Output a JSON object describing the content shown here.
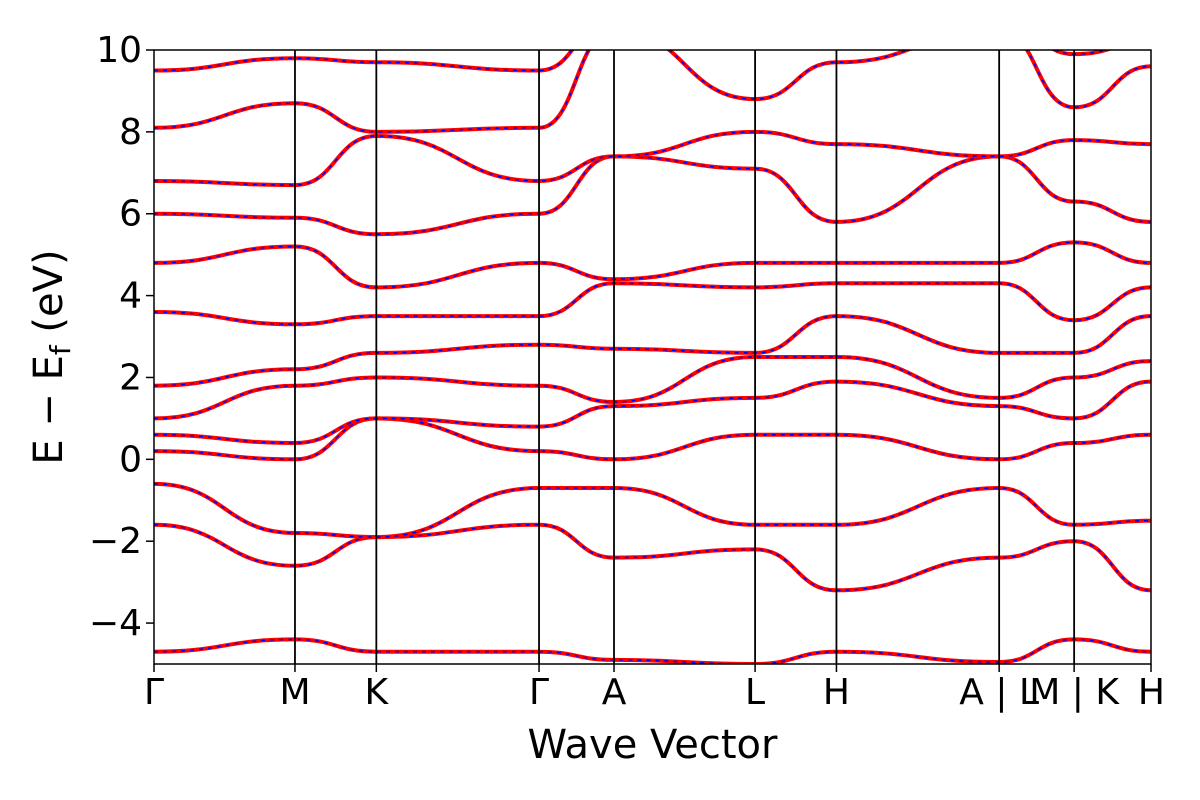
{
  "chart_data": {
    "type": "line",
    "title": "",
    "xlabel": "Wave Vector",
    "ylabel": "E − E",
    "ylabel_subscript": "f",
    "ylabel_unit": " (eV)",
    "ylim": [
      -5,
      10
    ],
    "yticks": [
      -4,
      -2,
      0,
      2,
      4,
      6,
      8,
      10
    ],
    "ytick_labels": [
      "−4",
      "−2",
      "0",
      "2",
      "4",
      "6",
      "8",
      "10"
    ],
    "xlim": [
      0,
      1
    ],
    "kpath_positions": [
      0,
      0.1414,
      0.223,
      0.3862,
      0.4614,
      0.6029,
      0.6845,
      0.8477,
      0.9229,
      1.0
    ],
    "xtick_labels": [
      "Γ",
      "M",
      "K",
      "Γ",
      "A",
      "L",
      "H",
      "A | L",
      "M | K",
      "H"
    ],
    "grid": false,
    "colors": {
      "band_line": "#ff0000",
      "band_dash": "#0000ff",
      "kpath_line": "#000000"
    },
    "series": [
      {
        "x": [
          0,
          0.1414,
          0.223,
          0.3862,
          0.4614,
          0.6029,
          0.6845,
          0.8477,
          0.9229,
          1.0
        ],
        "values": [
          -4.7,
          -4.4,
          -4.7,
          -4.7,
          -4.9,
          -5.0,
          -4.7,
          -4.95,
          -4.4,
          -4.7
        ]
      },
      {
        "x": [
          0,
          0.1414,
          0.223,
          0.3862,
          0.4614,
          0.6029,
          0.6845,
          0.8477,
          0.9229,
          1.0
        ],
        "values": [
          -1.6,
          -2.6,
          -1.9,
          -1.6,
          -2.4,
          -2.2,
          -3.2,
          -2.4,
          -2.0,
          -3.2
        ]
      },
      {
        "x": [
          0,
          0.1414,
          0.223,
          0.3862,
          0.4614,
          0.6029,
          0.6845,
          0.8477,
          0.9229,
          1.0
        ],
        "values": [
          -0.6,
          -1.8,
          -1.9,
          -0.7,
          -0.7,
          -1.6,
          -1.6,
          -0.7,
          -1.6,
          -1.5
        ]
      },
      {
        "x": [
          0,
          0.1414,
          0.223,
          0.3862,
          0.4614,
          0.6029,
          0.6845,
          0.8477,
          0.9229,
          1.0
        ],
        "values": [
          0.2,
          0.0,
          1.0,
          0.2,
          0.0,
          0.6,
          0.6,
          0.0,
          0.4,
          0.6
        ]
      },
      {
        "x": [
          0,
          0.1414,
          0.223,
          0.3862,
          0.4614,
          0.6029,
          0.6845,
          0.8477,
          0.9229,
          1.0
        ],
        "values": [
          0.6,
          0.4,
          1.0,
          0.8,
          1.3,
          1.5,
          1.9,
          1.3,
          1.0,
          1.9
        ]
      },
      {
        "x": [
          0,
          0.1414,
          0.223,
          0.3862,
          0.4614,
          0.6029,
          0.6845,
          0.8477,
          0.9229,
          1.0
        ],
        "values": [
          1.0,
          1.8,
          2.0,
          1.8,
          1.4,
          2.5,
          2.5,
          1.5,
          2.0,
          2.4
        ]
      },
      {
        "x": [
          0,
          0.1414,
          0.223,
          0.3862,
          0.4614,
          0.6029,
          0.6845,
          0.8477,
          0.9229,
          1.0
        ],
        "values": [
          1.8,
          2.2,
          2.6,
          2.8,
          2.7,
          2.6,
          3.5,
          2.6,
          2.6,
          3.5
        ]
      },
      {
        "x": [
          0,
          0.1414,
          0.223,
          0.3862,
          0.4614,
          0.6029,
          0.6845,
          0.8477,
          0.9229,
          1.0
        ],
        "values": [
          3.6,
          3.3,
          3.5,
          3.5,
          4.3,
          4.2,
          4.3,
          4.3,
          3.4,
          4.2
        ]
      },
      {
        "x": [
          0,
          0.1414,
          0.223,
          0.3862,
          0.4614,
          0.6029,
          0.6845,
          0.8477,
          0.9229,
          1.0
        ],
        "values": [
          4.8,
          5.2,
          4.2,
          4.8,
          4.4,
          4.8,
          4.8,
          4.8,
          5.3,
          4.8
        ]
      },
      {
        "x": [
          0,
          0.1414,
          0.223,
          0.3862,
          0.4614,
          0.6029,
          0.6845,
          0.8477,
          0.9229,
          1.0
        ],
        "values": [
          6.0,
          5.9,
          5.5,
          6.0,
          7.4,
          7.1,
          5.8,
          7.4,
          6.3,
          5.8
        ]
      },
      {
        "x": [
          0,
          0.1414,
          0.223,
          0.3862,
          0.4614,
          0.6029,
          0.6845,
          0.8477,
          0.9229,
          1.0
        ],
        "values": [
          6.8,
          6.7,
          7.9,
          6.8,
          7.4,
          8.0,
          7.7,
          7.4,
          7.8,
          7.7
        ]
      },
      {
        "x": [
          0,
          0.1414,
          0.223,
          0.3862,
          0.4614,
          0.6029,
          0.6845,
          0.8477,
          0.9229,
          1.0
        ],
        "values": [
          8.1,
          8.7,
          8.0,
          8.1,
          10.5,
          8.8,
          9.7,
          10.5,
          8.6,
          9.6
        ]
      },
      {
        "x": [
          0,
          0.1414,
          0.223,
          0.3862,
          0.4614,
          0.6029,
          0.6845,
          0.8477,
          0.9229,
          1.0
        ],
        "values": [
          9.5,
          9.8,
          9.7,
          9.5,
          10.8,
          10.5,
          10.4,
          10.8,
          9.9,
          10.2
        ]
      }
    ]
  }
}
